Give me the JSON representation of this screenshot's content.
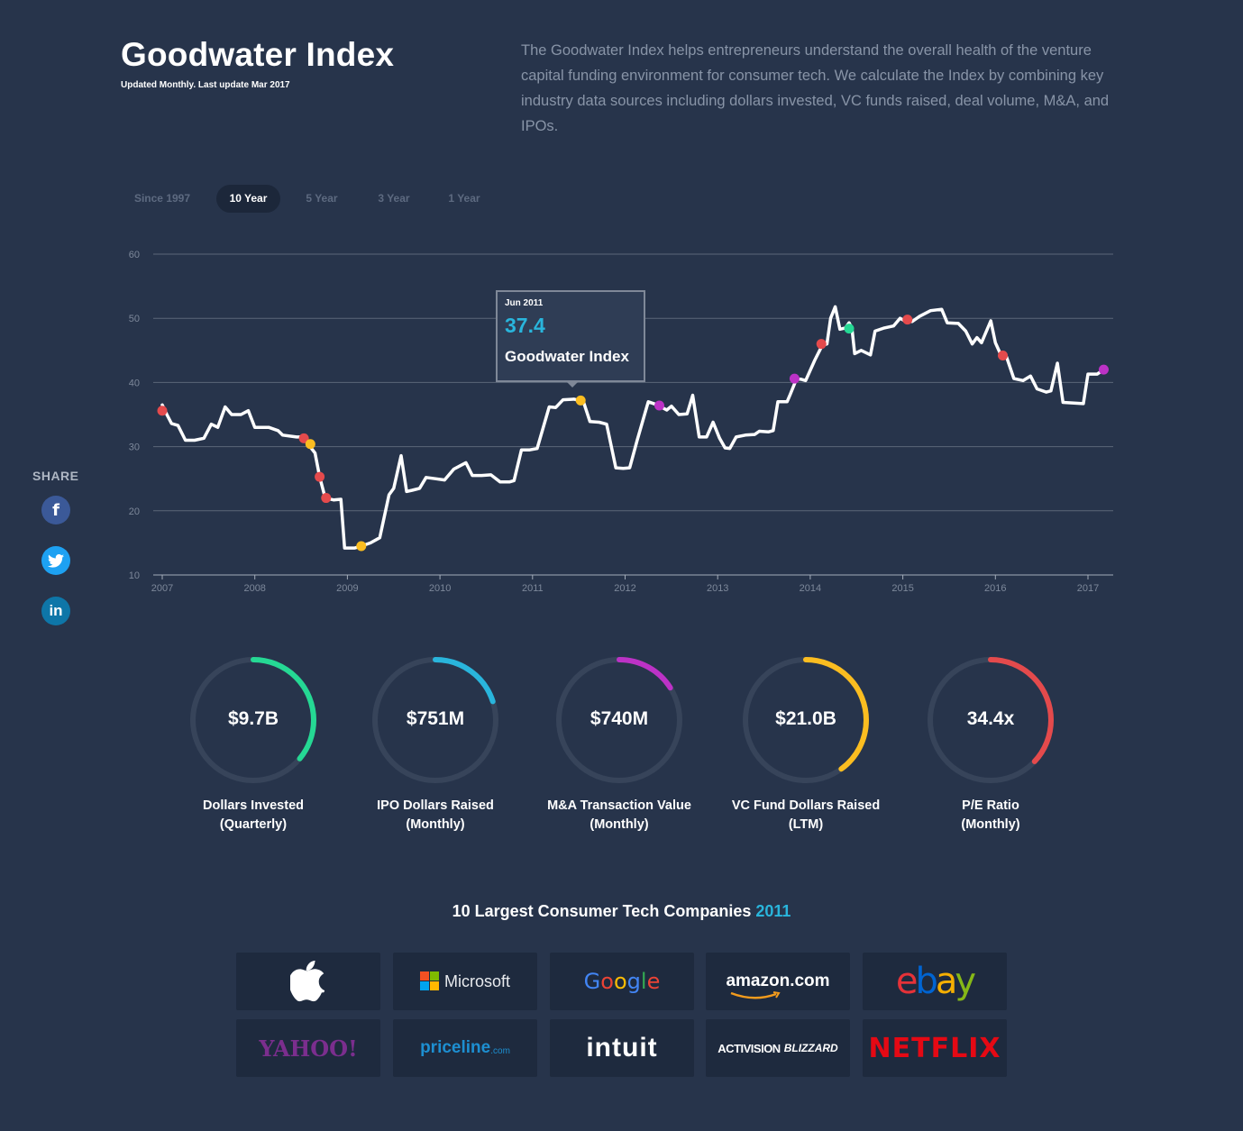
{
  "header": {
    "title": "Goodwater Index",
    "subtitle": "Updated Monthly. Last update Mar 2017",
    "description": "The Goodwater Index helps entrepreneurs understand the overall health of the venture capital funding environment for consumer tech. We calculate the Index by combining key industry data sources including dollars invested, VC funds raised, deal volume, M&A, and IPOs."
  },
  "range_tabs": [
    {
      "label": "Since 1997",
      "active": false
    },
    {
      "label": "10 Year",
      "active": true
    },
    {
      "label": "5 Year",
      "active": false
    },
    {
      "label": "3 Year",
      "active": false
    },
    {
      "label": "1 Year",
      "active": false
    }
  ],
  "tooltip": {
    "date": "Jun 2011",
    "value": "37.4",
    "label": "Goodwater Index"
  },
  "share": {
    "label": "SHARE",
    "facebook_glyph": "f",
    "linkedin_glyph": "in",
    "twitter_icon": "twitter-icon"
  },
  "colors": {
    "background": "#27344b",
    "line": "#ffffff",
    "grid": "#5b6679",
    "accent_blue": "#29b5dc",
    "green": "#25d894",
    "red": "#e44a4c",
    "yellow": "#fbbd20",
    "purple": "#bc32c6"
  },
  "chart_data": {
    "type": "line",
    "x_tick_labels": [
      "2007",
      "2008",
      "2009",
      "2010",
      "2011",
      "2012",
      "2013",
      "2014",
      "2015",
      "2016",
      "2017"
    ],
    "y_tick_labels": [
      "60",
      "50",
      "40",
      "30",
      "20",
      "10"
    ],
    "xlim": [
      2007,
      2017.3
    ],
    "ylim": [
      10,
      60
    ],
    "grid": true,
    "series": [
      {
        "points": [
          [
            2007.0,
            36.5
          ],
          [
            2007.05,
            35.0
          ],
          [
            2007.1,
            33.6
          ],
          [
            2007.17,
            33.3
          ],
          [
            2007.25,
            31.0
          ],
          [
            2007.35,
            31.0
          ],
          [
            2007.45,
            31.3
          ],
          [
            2007.53,
            33.5
          ],
          [
            2007.6,
            33.0
          ],
          [
            2007.68,
            36.2
          ],
          [
            2007.75,
            35.0
          ],
          [
            2007.85,
            35.0
          ],
          [
            2007.93,
            35.6
          ],
          [
            2008.0,
            33.0
          ],
          [
            2008.15,
            33.0
          ],
          [
            2008.25,
            32.5
          ],
          [
            2008.3,
            31.8
          ],
          [
            2008.45,
            31.5
          ],
          [
            2008.52,
            31.5
          ],
          [
            2008.58,
            30.3
          ],
          [
            2008.65,
            29.0
          ],
          [
            2008.7,
            25.3
          ],
          [
            2008.76,
            22.0
          ],
          [
            2008.85,
            21.7
          ],
          [
            2008.93,
            21.8
          ],
          [
            2008.97,
            14.2
          ],
          [
            2009.08,
            14.2
          ],
          [
            2009.15,
            14.5
          ],
          [
            2009.25,
            15.0
          ],
          [
            2009.35,
            15.8
          ],
          [
            2009.45,
            22.5
          ],
          [
            2009.5,
            23.5
          ],
          [
            2009.58,
            28.6
          ],
          [
            2009.64,
            23.0
          ],
          [
            2009.7,
            23.2
          ],
          [
            2009.78,
            23.5
          ],
          [
            2009.85,
            25.2
          ],
          [
            2009.95,
            25.0
          ],
          [
            2010.05,
            24.8
          ],
          [
            2010.15,
            26.5
          ],
          [
            2010.28,
            27.5
          ],
          [
            2010.35,
            25.5
          ],
          [
            2010.45,
            25.5
          ],
          [
            2010.55,
            25.6
          ],
          [
            2010.65,
            24.5
          ],
          [
            2010.75,
            24.5
          ],
          [
            2010.8,
            24.7
          ],
          [
            2010.88,
            29.5
          ],
          [
            2010.97,
            29.5
          ],
          [
            2011.05,
            29.7
          ],
          [
            2011.18,
            36.2
          ],
          [
            2011.25,
            36.1
          ],
          [
            2011.33,
            37.3
          ],
          [
            2011.45,
            37.4
          ],
          [
            2011.55,
            37.0
          ],
          [
            2011.62,
            33.9
          ],
          [
            2011.72,
            33.8
          ],
          [
            2011.8,
            33.5
          ],
          [
            2011.9,
            26.7
          ],
          [
            2011.98,
            26.6
          ],
          [
            2012.05,
            26.7
          ],
          [
            2012.13,
            31.0
          ],
          [
            2012.25,
            37.0
          ],
          [
            2012.35,
            36.5
          ],
          [
            2012.45,
            35.7
          ],
          [
            2012.5,
            36.3
          ],
          [
            2012.58,
            35.0
          ],
          [
            2012.67,
            35.1
          ],
          [
            2012.73,
            38.0
          ],
          [
            2012.8,
            31.5
          ],
          [
            2012.88,
            31.5
          ],
          [
            2012.95,
            33.8
          ],
          [
            2013.02,
            31.3
          ],
          [
            2013.08,
            29.8
          ],
          [
            2013.13,
            29.7
          ],
          [
            2013.2,
            31.5
          ],
          [
            2013.3,
            31.8
          ],
          [
            2013.4,
            31.9
          ],
          [
            2013.45,
            32.4
          ],
          [
            2013.55,
            32.3
          ],
          [
            2013.6,
            32.5
          ],
          [
            2013.65,
            37.0
          ],
          [
            2013.75,
            37.0
          ],
          [
            2013.78,
            38.0
          ],
          [
            2013.85,
            40.5
          ],
          [
            2013.9,
            40.5
          ],
          [
            2013.95,
            40.3
          ],
          [
            2014.05,
            43.5
          ],
          [
            2014.13,
            45.8
          ],
          [
            2014.18,
            46.0
          ],
          [
            2014.22,
            50.0
          ],
          [
            2014.27,
            51.8
          ],
          [
            2014.32,
            48.3
          ],
          [
            2014.38,
            48.5
          ],
          [
            2014.42,
            49.3
          ],
          [
            2014.45,
            48.5
          ],
          [
            2014.48,
            44.5
          ],
          [
            2014.55,
            45.0
          ],
          [
            2014.65,
            44.3
          ],
          [
            2014.7,
            48.0
          ],
          [
            2014.8,
            48.5
          ],
          [
            2014.9,
            48.8
          ],
          [
            2014.97,
            50.0
          ],
          [
            2015.02,
            49.6
          ],
          [
            2015.1,
            49.5
          ],
          [
            2015.18,
            50.3
          ],
          [
            2015.3,
            51.2
          ],
          [
            2015.42,
            51.4
          ],
          [
            2015.48,
            49.3
          ],
          [
            2015.6,
            49.2
          ],
          [
            2015.68,
            48.0
          ],
          [
            2015.75,
            46.0
          ],
          [
            2015.8,
            47.0
          ],
          [
            2015.85,
            46.2
          ],
          [
            2015.95,
            49.6
          ],
          [
            2016.0,
            46.2
          ],
          [
            2016.05,
            44.6
          ],
          [
            2016.12,
            44.0
          ],
          [
            2016.2,
            40.6
          ],
          [
            2016.3,
            40.3
          ],
          [
            2016.38,
            41.0
          ],
          [
            2016.45,
            39.0
          ],
          [
            2016.55,
            38.5
          ],
          [
            2016.6,
            38.7
          ],
          [
            2016.67,
            43.0
          ],
          [
            2016.73,
            36.9
          ],
          [
            2016.85,
            36.8
          ],
          [
            2016.95,
            36.7
          ],
          [
            2017.0,
            41.3
          ],
          [
            2017.1,
            41.3
          ],
          [
            2017.17,
            42.0
          ]
        ]
      }
    ],
    "markers": [
      {
        "x": 2007.0,
        "y": 35.6,
        "color": "#e44a4c"
      },
      {
        "x": 2008.53,
        "y": 31.3,
        "color": "#e44a4c"
      },
      {
        "x": 2008.6,
        "y": 30.4,
        "color": "#fbbd20"
      },
      {
        "x": 2008.7,
        "y": 25.3,
        "color": "#e44a4c"
      },
      {
        "x": 2008.77,
        "y": 22.0,
        "color": "#e44a4c"
      },
      {
        "x": 2009.15,
        "y": 14.5,
        "color": "#fbbd20"
      },
      {
        "x": 2011.52,
        "y": 37.2,
        "color": "#fbbd20"
      },
      {
        "x": 2012.37,
        "y": 36.4,
        "color": "#bc32c6"
      },
      {
        "x": 2013.83,
        "y": 40.6,
        "color": "#bc32c6"
      },
      {
        "x": 2014.12,
        "y": 46.0,
        "color": "#e44a4c"
      },
      {
        "x": 2014.42,
        "y": 48.4,
        "color": "#25d894"
      },
      {
        "x": 2015.05,
        "y": 49.8,
        "color": "#e44a4c"
      },
      {
        "x": 2016.08,
        "y": 44.2,
        "color": "#e44a4c"
      },
      {
        "x": 2017.17,
        "y": 42.0,
        "color": "#bc32c6"
      }
    ],
    "highlight": {
      "x": 2011.5,
      "y": 37.4
    }
  },
  "gauges": [
    {
      "value": "$9.7B",
      "label_line1": "Dollars Invested",
      "label_line2": "(Quarterly)",
      "fill": 0.36,
      "color": "#25d894"
    },
    {
      "value": "$751M",
      "label_line1": "IPO Dollars Raised",
      "label_line2": "(Monthly)",
      "fill": 0.2,
      "color": "#29b5dc"
    },
    {
      "value": "$740M",
      "label_line1": "M&A Transaction Value",
      "label_line2": "(Monthly)",
      "fill": 0.16,
      "color": "#bc32c6"
    },
    {
      "value": "$21.0B",
      "label_line1": "VC Fund Dollars Raised",
      "label_line2": "(LTM)",
      "fill": 0.4,
      "color": "#fbbd20"
    },
    {
      "value": "34.4x",
      "label_line1": "P/E Ratio",
      "label_line2": "(Monthly)",
      "fill": 0.37,
      "color": "#e44a4c"
    }
  ],
  "companies": {
    "title": "10 Largest Consumer Tech Companies",
    "year": "2011",
    "logos": [
      {
        "name": "Apple",
        "text": "",
        "icon": "apple-logo"
      },
      {
        "name": "Microsoft",
        "text": "Microsoft",
        "icon": "windows-logo"
      },
      {
        "name": "Google",
        "text": "Google"
      },
      {
        "name": "Amazon",
        "text": "amazon.com"
      },
      {
        "name": "eBay",
        "text": "ebay"
      },
      {
        "name": "Yahoo",
        "text": "YAHOO!"
      },
      {
        "name": "Priceline",
        "text": "priceline",
        "suffix": ".com"
      },
      {
        "name": "Intuit",
        "text": "intuit"
      },
      {
        "name": "Activision Blizzard",
        "text": "ACTIVISION",
        "suffix": "BLIZZARD"
      },
      {
        "name": "Netflix",
        "text": "NETFLIX"
      }
    ]
  }
}
